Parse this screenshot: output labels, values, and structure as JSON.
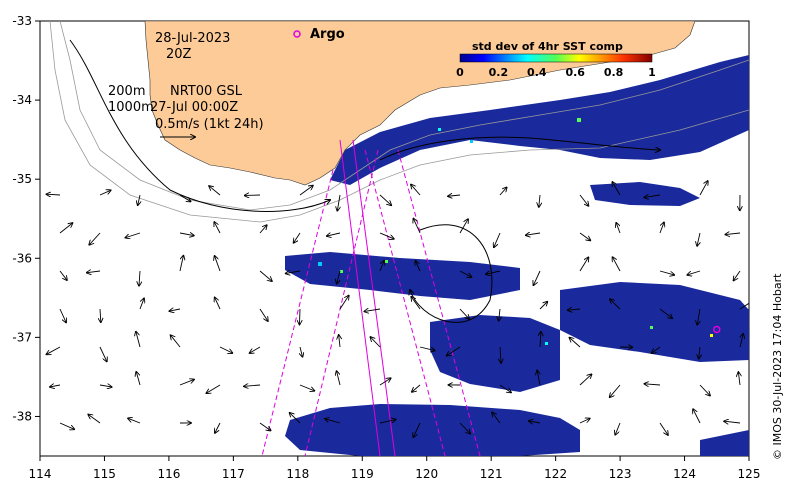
{
  "map": {
    "date": "28-Jul-2023",
    "hour": "20Z",
    "depth_line": "200m",
    "depth_line2": "1000m",
    "product": "NRT00 GSL",
    "product_time": "27-Jul 00:00Z",
    "scale_label": "0.5m/s (1kt 24h)",
    "argo_label": "Argo",
    "credit": "© IMOS 30-Jul-2023 17:04 Hobart",
    "colors": {
      "land": "#FDCB97",
      "ocean": "#FFFFFF",
      "sst_patch": "#1A2A9C",
      "track": "#E000E0",
      "argo_marker": "#E000E0"
    }
  },
  "axes": {
    "x_ticks": [
      "114",
      "115",
      "116",
      "117",
      "118",
      "119",
      "120",
      "121",
      "122",
      "123",
      "124",
      "125"
    ],
    "y_ticks": [
      "-33",
      "-34",
      "-35",
      "-36",
      "-37",
      "-38"
    ],
    "x_range": [
      114,
      125
    ],
    "y_range": [
      -33,
      -38.5
    ]
  },
  "colorbar": {
    "title": "std dev of 4hr SST comp",
    "ticks": [
      "0",
      "0.2",
      "0.4",
      "0.6",
      "0.8",
      "1"
    ],
    "range": [
      0,
      1
    ],
    "colormap": "jet"
  },
  "argo": {
    "lon": 124.5,
    "lat": -36.9
  }
}
